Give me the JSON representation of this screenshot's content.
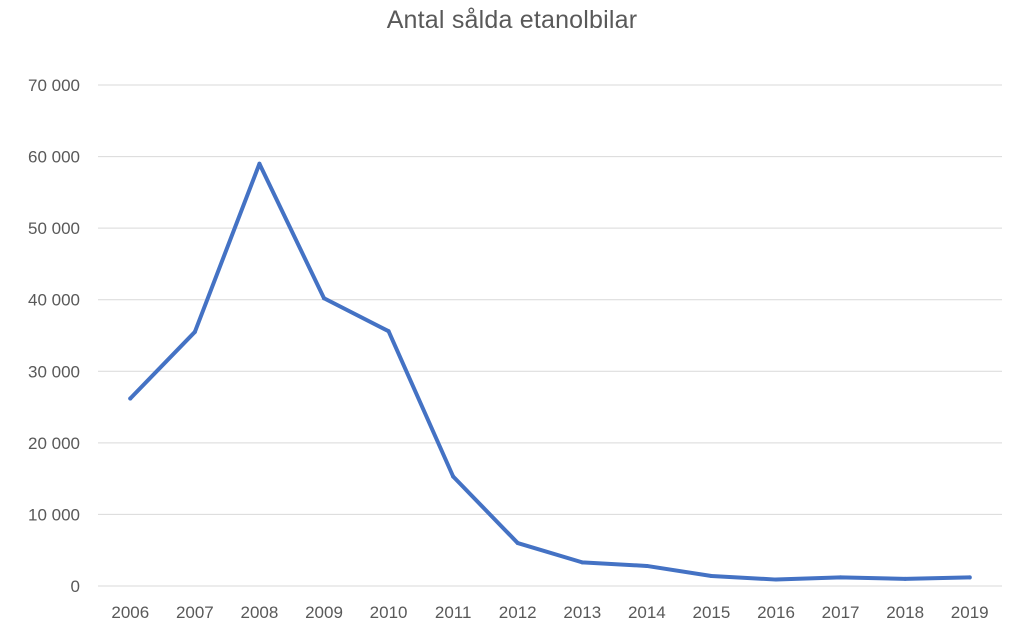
{
  "chart_data": {
    "type": "line",
    "title": "Antal sålda etanolbilar",
    "xlabel": "",
    "ylabel": "",
    "categories": [
      "2006",
      "2007",
      "2008",
      "2009",
      "2010",
      "2011",
      "2012",
      "2013",
      "2014",
      "2015",
      "2016",
      "2017",
      "2018",
      "2019"
    ],
    "series": [
      {
        "values": [
          26200,
          35500,
          59000,
          40200,
          35600,
          15300,
          6000,
          3300,
          2800,
          1400,
          900,
          1200,
          1000,
          1200
        ]
      }
    ],
    "ylim": [
      0,
      70000
    ],
    "yticks": [
      0,
      10000,
      20000,
      30000,
      40000,
      50000,
      60000,
      70000
    ],
    "ytick_labels": [
      "0",
      "10 000",
      "20 000",
      "30 000",
      "40 000",
      "50 000",
      "60 000",
      "70 000"
    ],
    "grid": true,
    "line_color": "#4472C4",
    "grid_color": "#D9D9D9",
    "text_color": "#595959"
  }
}
